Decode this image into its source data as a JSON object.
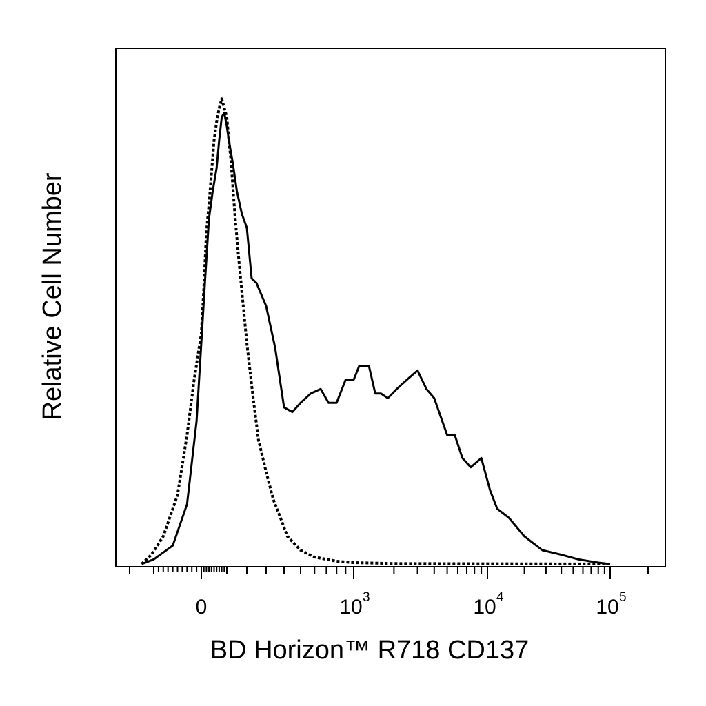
{
  "chart_data": {
    "type": "line",
    "title": "",
    "xlabel": "BD Horizon™ R718  CD137",
    "ylabel": "Relative Cell Number",
    "x_scale": "biexponential",
    "xlim": [
      -200,
      200000
    ],
    "ylim": [
      0,
      100
    ],
    "grid": false,
    "x_tick_labels": [
      {
        "value": 0,
        "base": "0",
        "exp": ""
      },
      {
        "value": 1000,
        "base": "10",
        "exp": "3"
      },
      {
        "value": 10000,
        "base": "10",
        "exp": "4"
      },
      {
        "value": 100000,
        "base": "10",
        "exp": "5"
      }
    ],
    "series": [
      {
        "style": "solid",
        "color": "#000000",
        "points": [
          [
            -150,
            0
          ],
          [
            -100,
            1
          ],
          [
            -60,
            4
          ],
          [
            -30,
            13
          ],
          [
            -10,
            31
          ],
          [
            0,
            48
          ],
          [
            15,
            62
          ],
          [
            30,
            75
          ],
          [
            45,
            81
          ],
          [
            60,
            86
          ],
          [
            70,
            92
          ],
          [
            80,
            97
          ],
          [
            90,
            98
          ],
          [
            100,
            95
          ],
          [
            110,
            92
          ],
          [
            130,
            87
          ],
          [
            150,
            81
          ],
          [
            175,
            76
          ],
          [
            200,
            73
          ],
          [
            225,
            62
          ],
          [
            250,
            61
          ],
          [
            300,
            56
          ],
          [
            350,
            47
          ],
          [
            400,
            34
          ],
          [
            450,
            33
          ],
          [
            500,
            35
          ],
          [
            570,
            37
          ],
          [
            650,
            38
          ],
          [
            720,
            35
          ],
          [
            800,
            35
          ],
          [
            900,
            40
          ],
          [
            1000,
            40
          ],
          [
            1100,
            43
          ],
          [
            1300,
            43
          ],
          [
            1450,
            37
          ],
          [
            1600,
            37
          ],
          [
            1800,
            36
          ],
          [
            2100,
            38
          ],
          [
            2500,
            40
          ],
          [
            3000,
            42
          ],
          [
            3500,
            38
          ],
          [
            4000,
            36
          ],
          [
            5000,
            28
          ],
          [
            5700,
            28
          ],
          [
            6500,
            23
          ],
          [
            7500,
            21
          ],
          [
            9000,
            23
          ],
          [
            10500,
            16
          ],
          [
            12000,
            12
          ],
          [
            15000,
            10
          ],
          [
            20000,
            6
          ],
          [
            28000,
            3
          ],
          [
            40000,
            2
          ],
          [
            55000,
            1
          ],
          [
            80000,
            0.3
          ],
          [
            100000,
            0
          ]
        ]
      },
      {
        "style": "dotted",
        "color": "#000000",
        "points": [
          [
            -150,
            0
          ],
          [
            -110,
            2
          ],
          [
            -80,
            6
          ],
          [
            -50,
            15
          ],
          [
            -30,
            28
          ],
          [
            -15,
            40
          ],
          [
            0,
            50
          ],
          [
            10,
            60
          ],
          [
            20,
            72
          ],
          [
            30,
            78
          ],
          [
            40,
            85
          ],
          [
            50,
            92
          ],
          [
            60,
            96
          ],
          [
            70,
            99
          ],
          [
            80,
            101
          ],
          [
            90,
            99
          ],
          [
            100,
            97
          ],
          [
            110,
            92
          ],
          [
            120,
            88
          ],
          [
            130,
            82
          ],
          [
            140,
            76
          ],
          [
            150,
            71
          ],
          [
            160,
            66
          ],
          [
            180,
            57
          ],
          [
            200,
            48
          ],
          [
            230,
            37
          ],
          [
            260,
            27
          ],
          [
            300,
            20
          ],
          [
            340,
            14
          ],
          [
            380,
            10
          ],
          [
            420,
            6
          ],
          [
            500,
            3
          ],
          [
            600,
            1.5
          ],
          [
            800,
            0.6
          ],
          [
            1000,
            0.3
          ],
          [
            2000,
            0.1
          ],
          [
            100000,
            0
          ]
        ]
      }
    ]
  }
}
